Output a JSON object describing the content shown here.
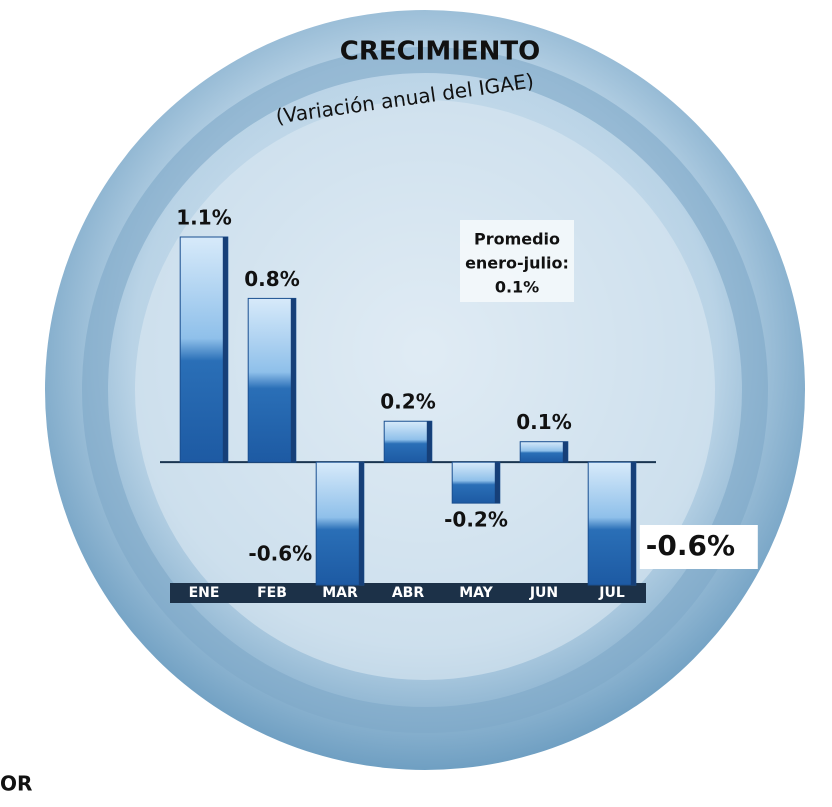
{
  "chart_data": {
    "type": "bar",
    "title": "CRECIMIENTO",
    "subtitle": "(Variación anual del IGAE)",
    "categories": [
      "ENE",
      "FEB",
      "MAR",
      "ABR",
      "MAY",
      "JUN",
      "JUL"
    ],
    "values": [
      1.1,
      0.8,
      -0.6,
      0.2,
      -0.2,
      0.1,
      -0.6
    ],
    "value_labels": [
      "1.1%",
      "0.8%",
      "-0.6%",
      "0.2%",
      "-0.2%",
      "0.1%",
      "-0.6%"
    ],
    "color": "#4a8fd0",
    "ylim": [
      -0.6,
      1.1
    ],
    "annotation": [
      "Promedio",
      "enero-julio:",
      "0.1%"
    ]
  },
  "page_fragments": [
    "OR"
  ]
}
